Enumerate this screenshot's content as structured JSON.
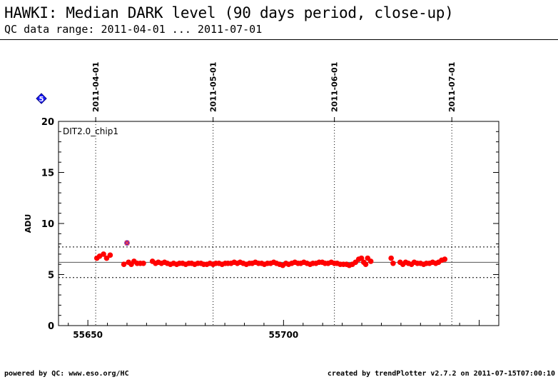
{
  "header": {
    "title": "HAWKI: Median DARK level (90 days period, close-up)",
    "subtitle": "QC data range: 2011-04-01 ... 2011-07-01"
  },
  "footer": {
    "left": "powered by QC: www.eso.org/HC",
    "right": "created by trendPlotter v2.7.2 on 2011-07-15T07:00:10"
  },
  "badge": {
    "text": "5",
    "color": "#1a1aff"
  },
  "chart_data": {
    "type": "scatter",
    "panel_label": "DIT2.0_chip1",
    "ylabel": "ADU",
    "xlim": [
      55642.5,
      55755
    ],
    "ylim": [
      0,
      20
    ],
    "x_ticks": [
      55650,
      55700
    ],
    "y_ticks": [
      0,
      5,
      10,
      15,
      20
    ],
    "top_date_axis": [
      {
        "label": "2011-04-01",
        "mjd": 55652
      },
      {
        "label": "2011-05-01",
        "mjd": 55682
      },
      {
        "label": "2011-06-01",
        "mjd": 55713
      },
      {
        "label": "2011-07-01",
        "mjd": 55743
      }
    ],
    "reference_line": 6.2,
    "band_lines": [
      7.7,
      4.7
    ],
    "grid": false,
    "point_color": "#ff0000",
    "outlier_color": "#7a1fa2",
    "outliers": [
      {
        "x": 55660,
        "y": 8.1
      }
    ],
    "points": [
      {
        "x": 55652.3,
        "y": 6.6
      },
      {
        "x": 55653.0,
        "y": 6.8
      },
      {
        "x": 55654.0,
        "y": 7.0
      },
      {
        "x": 55654.8,
        "y": 6.6
      },
      {
        "x": 55655.7,
        "y": 6.9
      },
      {
        "x": 55659.2,
        "y": 6.0
      },
      {
        "x": 55660.4,
        "y": 6.2
      },
      {
        "x": 55661.1,
        "y": 6.0
      },
      {
        "x": 55661.8,
        "y": 6.3
      },
      {
        "x": 55662.6,
        "y": 6.1
      },
      {
        "x": 55663.4,
        "y": 6.1
      },
      {
        "x": 55664.2,
        "y": 6.1
      },
      {
        "x": 55666.5,
        "y": 6.3
      },
      {
        "x": 55667.3,
        "y": 6.1
      },
      {
        "x": 55668.0,
        "y": 6.2
      },
      {
        "x": 55668.8,
        "y": 6.1
      },
      {
        "x": 55669.6,
        "y": 6.2
      },
      {
        "x": 55670.3,
        "y": 6.1
      },
      {
        "x": 55671.1,
        "y": 6.0
      },
      {
        "x": 55671.9,
        "y": 6.1
      },
      {
        "x": 55672.7,
        "y": 6.0
      },
      {
        "x": 55673.4,
        "y": 6.1
      },
      {
        "x": 55674.2,
        "y": 6.1
      },
      {
        "x": 55675.0,
        "y": 6.0
      },
      {
        "x": 55675.8,
        "y": 6.1
      },
      {
        "x": 55676.5,
        "y": 6.1
      },
      {
        "x": 55677.3,
        "y": 6.0
      },
      {
        "x": 55678.1,
        "y": 6.1
      },
      {
        "x": 55678.9,
        "y": 6.1
      },
      {
        "x": 55679.6,
        "y": 6.0
      },
      {
        "x": 55680.4,
        "y": 6.0
      },
      {
        "x": 55681.2,
        "y": 6.1
      },
      {
        "x": 55682.0,
        "y": 6.0
      },
      {
        "x": 55682.7,
        "y": 6.1
      },
      {
        "x": 55683.5,
        "y": 6.1
      },
      {
        "x": 55684.3,
        "y": 6.0
      },
      {
        "x": 55685.1,
        "y": 6.1
      },
      {
        "x": 55685.8,
        "y": 6.1
      },
      {
        "x": 55686.6,
        "y": 6.1
      },
      {
        "x": 55687.4,
        "y": 6.2
      },
      {
        "x": 55688.2,
        "y": 6.1
      },
      {
        "x": 55688.9,
        "y": 6.2
      },
      {
        "x": 55689.7,
        "y": 6.1
      },
      {
        "x": 55690.5,
        "y": 6.0
      },
      {
        "x": 55691.3,
        "y": 6.1
      },
      {
        "x": 55692.0,
        "y": 6.1
      },
      {
        "x": 55692.8,
        "y": 6.2
      },
      {
        "x": 55693.6,
        "y": 6.1
      },
      {
        "x": 55694.4,
        "y": 6.1
      },
      {
        "x": 55695.1,
        "y": 6.0
      },
      {
        "x": 55695.9,
        "y": 6.1
      },
      {
        "x": 55696.7,
        "y": 6.1
      },
      {
        "x": 55697.5,
        "y": 6.2
      },
      {
        "x": 55698.2,
        "y": 6.1
      },
      {
        "x": 55699.0,
        "y": 6.0
      },
      {
        "x": 55699.8,
        "y": 5.9
      },
      {
        "x": 55700.6,
        "y": 6.1
      },
      {
        "x": 55701.3,
        "y": 6.0
      },
      {
        "x": 55702.1,
        "y": 6.1
      },
      {
        "x": 55702.9,
        "y": 6.2
      },
      {
        "x": 55703.7,
        "y": 6.1
      },
      {
        "x": 55704.4,
        "y": 6.1
      },
      {
        "x": 55705.2,
        "y": 6.2
      },
      {
        "x": 55706.0,
        "y": 6.1
      },
      {
        "x": 55706.8,
        "y": 6.0
      },
      {
        "x": 55707.5,
        "y": 6.1
      },
      {
        "x": 55708.3,
        "y": 6.1
      },
      {
        "x": 55709.1,
        "y": 6.2
      },
      {
        "x": 55709.9,
        "y": 6.2
      },
      {
        "x": 55710.6,
        "y": 6.1
      },
      {
        "x": 55711.4,
        "y": 6.1
      },
      {
        "x": 55712.2,
        "y": 6.2
      },
      {
        "x": 55713.0,
        "y": 6.1
      },
      {
        "x": 55713.7,
        "y": 6.1
      },
      {
        "x": 55714.5,
        "y": 6.0
      },
      {
        "x": 55715.3,
        "y": 6.0
      },
      {
        "x": 55716.1,
        "y": 6.0
      },
      {
        "x": 55716.8,
        "y": 5.9
      },
      {
        "x": 55717.6,
        "y": 6.0
      },
      {
        "x": 55718.4,
        "y": 6.2
      },
      {
        "x": 55719.2,
        "y": 6.5
      },
      {
        "x": 55719.9,
        "y": 6.6
      },
      {
        "x": 55720.5,
        "y": 6.2
      },
      {
        "x": 55721.0,
        "y": 6.0
      },
      {
        "x": 55721.5,
        "y": 6.6
      },
      {
        "x": 55722.3,
        "y": 6.3
      },
      {
        "x": 55727.5,
        "y": 6.6
      },
      {
        "x": 55728.0,
        "y": 6.1
      },
      {
        "x": 55729.8,
        "y": 6.2
      },
      {
        "x": 55730.5,
        "y": 6.0
      },
      {
        "x": 55731.2,
        "y": 6.2
      },
      {
        "x": 55731.9,
        "y": 6.1
      },
      {
        "x": 55732.7,
        "y": 6.0
      },
      {
        "x": 55733.4,
        "y": 6.2
      },
      {
        "x": 55734.2,
        "y": 6.1
      },
      {
        "x": 55735.0,
        "y": 6.1
      },
      {
        "x": 55735.8,
        "y": 6.0
      },
      {
        "x": 55736.5,
        "y": 6.1
      },
      {
        "x": 55737.3,
        "y": 6.1
      },
      {
        "x": 55738.1,
        "y": 6.2
      },
      {
        "x": 55738.9,
        "y": 6.1
      },
      {
        "x": 55739.6,
        "y": 6.2
      },
      {
        "x": 55740.4,
        "y": 6.4
      },
      {
        "x": 55741.2,
        "y": 6.5
      }
    ]
  }
}
